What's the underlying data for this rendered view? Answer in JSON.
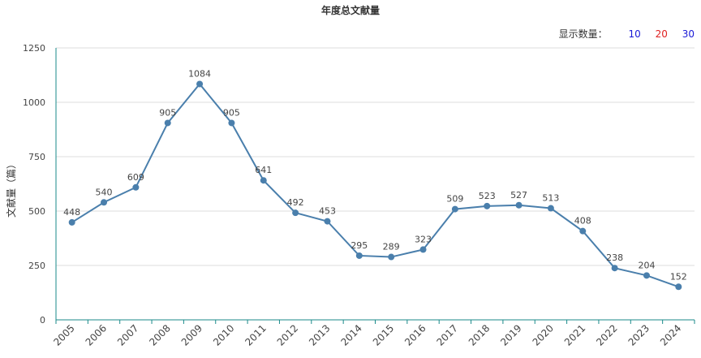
{
  "chart_data": {
    "type": "line",
    "title": "年度总文献量",
    "ylabel": "文献量（篇）",
    "xlabel": "",
    "categories": [
      "2005",
      "2006",
      "2007",
      "2008",
      "2009",
      "2010",
      "2011",
      "2012",
      "2013",
      "2014",
      "2015",
      "2016",
      "2017",
      "2018",
      "2019",
      "2020",
      "2021",
      "2022",
      "2023",
      "2024"
    ],
    "values": [
      448,
      540,
      609,
      905,
      1084,
      905,
      641,
      492,
      453,
      295,
      289,
      323,
      509,
      523,
      527,
      513,
      408,
      238,
      204,
      152
    ],
    "ylim": [
      0,
      1250
    ],
    "yticks": [
      0,
      250,
      500,
      750,
      1000,
      1250
    ],
    "grid": true,
    "series_color": "#4a7fac",
    "axis_color": "#1a8a8a"
  },
  "controls": {
    "label": "显示数量：",
    "options": [
      {
        "label": "10",
        "color": "#1a1ad6"
      },
      {
        "label": "20",
        "color": "#e02020"
      },
      {
        "label": "30",
        "color": "#1a1ad6"
      }
    ]
  }
}
